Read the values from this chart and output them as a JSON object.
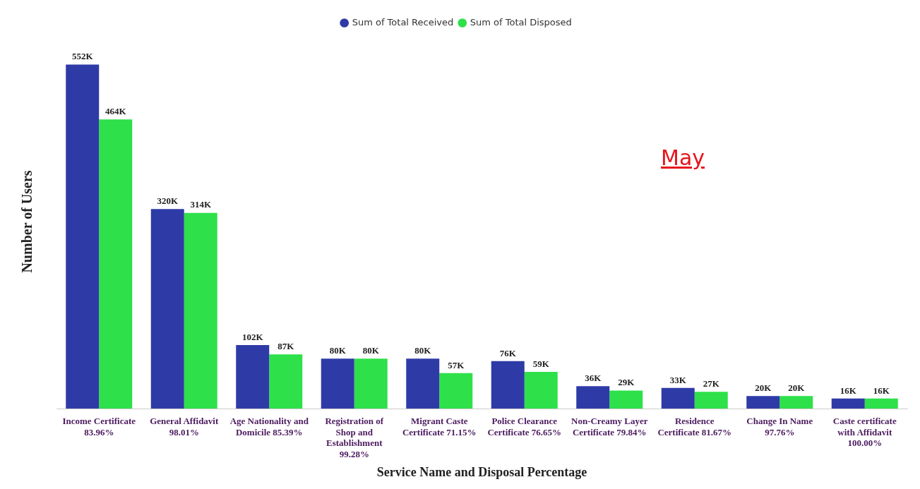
{
  "chart_data": {
    "type": "bar",
    "xlabel": "Service Name and Disposal Percentage",
    "ylabel": "Number of Users",
    "annotations": [
      "May"
    ],
    "legend": "top",
    "grid": false,
    "categories": [
      "Income Certificate 83.96%",
      "General Affidavit 98.01%",
      "Age Nationality and Domicile 85.39%",
      "Registration of Shop and Establishment 99.28%",
      "Migrant Caste Certificate 71.15%",
      "Police Clearance Certificate 76.65%",
      "Non-Creamy Layer Certificate 79.84%",
      "Residence Certificate 81.67%",
      "Change In Name 97.76%",
      "Caste certificate with Affidavit 100.00%"
    ],
    "series": [
      {
        "name": "Sum of Total Received",
        "color": "#2e3ba6",
        "values": [
          552000,
          320000,
          102000,
          80000,
          80000,
          76000,
          36000,
          33000,
          20000,
          16000
        ],
        "value_labels": [
          "552K",
          "320K",
          "102K",
          "80K",
          "80K",
          "76K",
          "36K",
          "33K",
          "20K",
          "16K"
        ]
      },
      {
        "name": "Sum of Total Disposed",
        "color": "#2ee04a",
        "values": [
          464000,
          314000,
          87000,
          80000,
          57000,
          59000,
          29000,
          27000,
          20000,
          16000
        ],
        "value_labels": [
          "464K",
          "314K",
          "87K",
          "80K",
          "57K",
          "59K",
          "29K",
          "27K",
          "20K",
          "16K"
        ]
      }
    ]
  }
}
